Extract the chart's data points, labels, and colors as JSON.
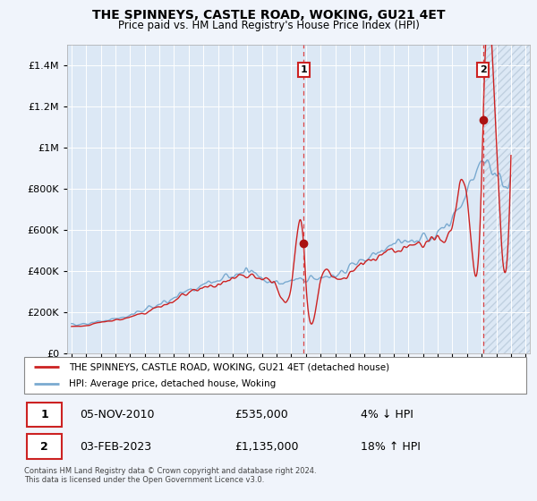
{
  "title": "THE SPINNEYS, CASTLE ROAD, WOKING, GU21 4ET",
  "subtitle": "Price paid vs. HM Land Registry's House Price Index (HPI)",
  "background_color": "#f0f4fb",
  "plot_bg_color": "#dce8f5",
  "plot_bg_color2": "#e8f0f8",
  "hatch_color": "#c8d8ea",
  "legend_entry1": "THE SPINNEYS, CASTLE ROAD, WOKING, GU21 4ET (detached house)",
  "legend_entry2": "HPI: Average price, detached house, Woking",
  "annotation1_label": "1",
  "annotation1_date": "05-NOV-2010",
  "annotation1_price": "£535,000",
  "annotation1_hpi": "4% ↓ HPI",
  "annotation2_label": "2",
  "annotation2_date": "03-FEB-2023",
  "annotation2_price": "£1,135,000",
  "annotation2_hpi": "18% ↑ HPI",
  "footer": "Contains HM Land Registry data © Crown copyright and database right 2024.\nThis data is licensed under the Open Government Licence v3.0.",
  "vline1_x": 2010.85,
  "vline2_x": 2023.09,
  "marker1_x": 2010.85,
  "marker1_y": 535000,
  "marker2_x": 2023.09,
  "marker2_y": 1135000,
  "ylim": [
    0,
    1500000
  ],
  "xlim": [
    1994.7,
    2026.3
  ],
  "hpi_color": "#7aaad0",
  "price_color": "#cc2222",
  "vline_color": "#dd4444",
  "marker_color": "#aa1111",
  "grid_color": "#ffffff",
  "yticks": [
    0,
    200000,
    400000,
    600000,
    800000,
    1000000,
    1200000,
    1400000
  ]
}
